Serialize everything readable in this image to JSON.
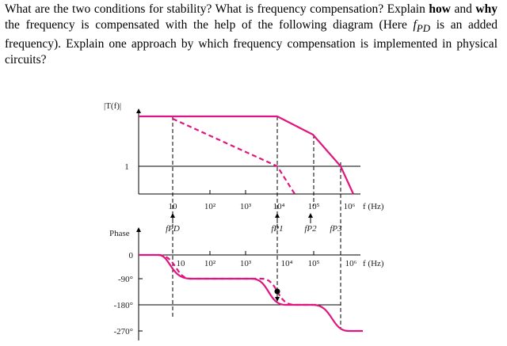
{
  "question": [
    "What are the two conditions for stability? What is frequency compensation? Explain ",
    "how",
    " and ",
    "why",
    " the frequency is compensated with the help of the following diagram (Here ",
    "f",
    "PD",
    " is an added frequency). Explain one approach by which frequency compensation is implemented in physical circuits?"
  ],
  "figure": {
    "magnitude_label": "|T(f)|",
    "magnitude_one": "1",
    "frequency_ticks": [
      "10",
      "10²",
      "10³",
      "10⁴",
      "10⁵",
      "10⁶"
    ],
    "frequency_label": "f (Hz)",
    "poles": [
      "fPD",
      "fP1",
      "fP2",
      "fP3"
    ],
    "phase_label": "Phase",
    "phase_ticks": [
      "0",
      "-90°",
      "-180°",
      "-270°"
    ]
  }
}
